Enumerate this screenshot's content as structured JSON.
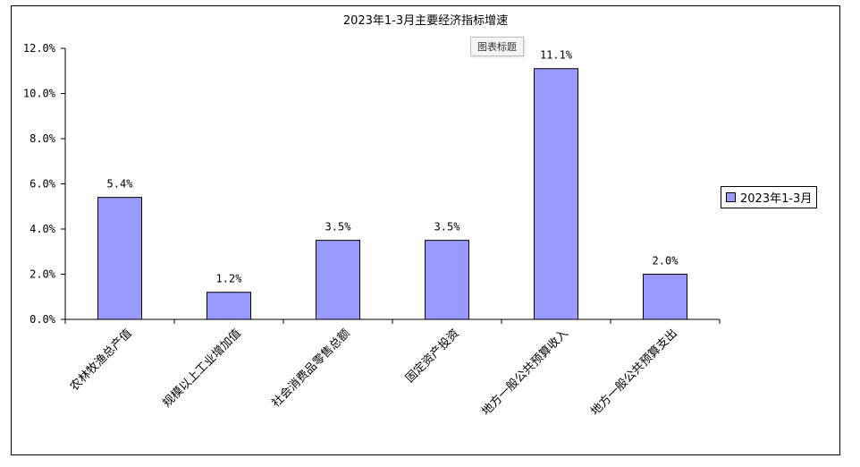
{
  "chart_data": {
    "type": "bar",
    "title": "2023年1-3月主要经济指标增速",
    "categories": [
      "农林牧渔总产值",
      "规模以上工业增加值",
      "社会消费品零售总额",
      "固定资产投资",
      "地方一般公共预算收入",
      "地方一般公共预算支出"
    ],
    "series": [
      {
        "name": "2023年1-3月",
        "values": [
          5.4,
          1.2,
          3.5,
          3.5,
          11.1,
          2.0
        ],
        "data_labels": [
          "5.4%",
          "1.2%",
          "3.5%",
          "3.5%",
          "11.1%",
          "2.0%"
        ]
      }
    ],
    "ylim": [
      0,
      12
    ],
    "yticks": [
      "0.0%",
      "2.0%",
      "4.0%",
      "6.0%",
      "8.0%",
      "10.0%",
      "12.0%"
    ],
    "ytick_values": [
      0,
      2,
      4,
      6,
      8,
      10,
      12
    ],
    "xlabel": "",
    "ylabel": "",
    "grid": false,
    "legend_position": "right",
    "bar_color": "#9999ff"
  },
  "tooltip_text": "图表标题"
}
